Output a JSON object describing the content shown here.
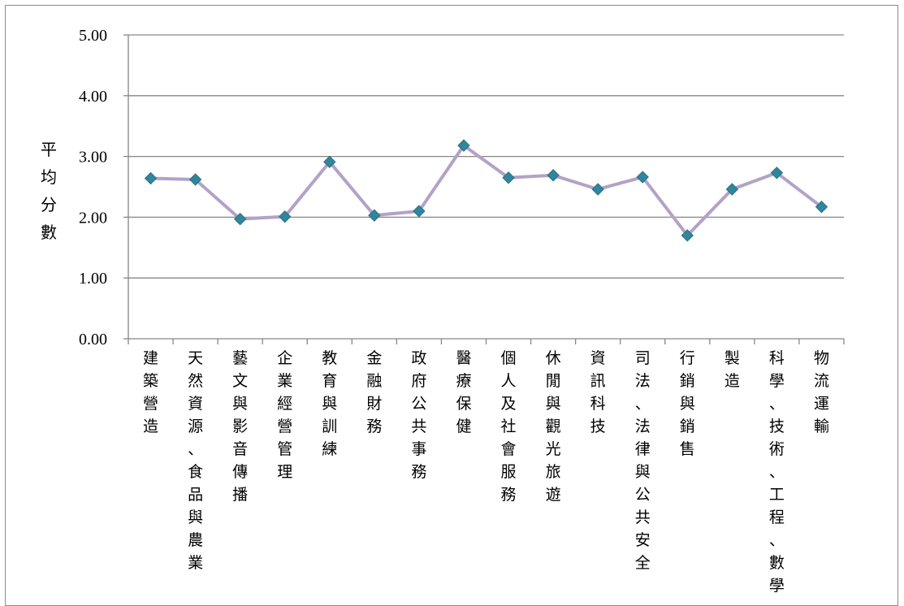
{
  "chart_data": {
    "type": "line",
    "title": "",
    "xlabel": "",
    "ylabel": "平均分數",
    "ylim": [
      0,
      5
    ],
    "yticks": [
      "0.00",
      "1.00",
      "2.00",
      "3.00",
      "4.00",
      "5.00"
    ],
    "grid": true,
    "legend": "none",
    "categories": [
      "建築營造",
      "天然資源、食品與農業",
      "藝文與影音傳播",
      "企業經營管理",
      "教育與訓練",
      "金融財務",
      "政府公共事務",
      "醫療保健",
      "個人及社會服務",
      "休閒與觀光旅遊",
      "資訊科技",
      "司法、法律與公共安全",
      "行銷與銷售",
      "製造",
      "科學、技術、工程、數學",
      "物流運輸"
    ],
    "series": [
      {
        "values": [
          2.64,
          2.62,
          1.97,
          2.01,
          2.91,
          2.03,
          2.1,
          3.18,
          2.65,
          2.69,
          2.46,
          2.66,
          1.7,
          2.46,
          2.73,
          2.17
        ]
      }
    ],
    "colors": {
      "line": "#b3a2c7",
      "marker": "#31859c",
      "grid": "#868686",
      "axis": "#868686"
    }
  }
}
